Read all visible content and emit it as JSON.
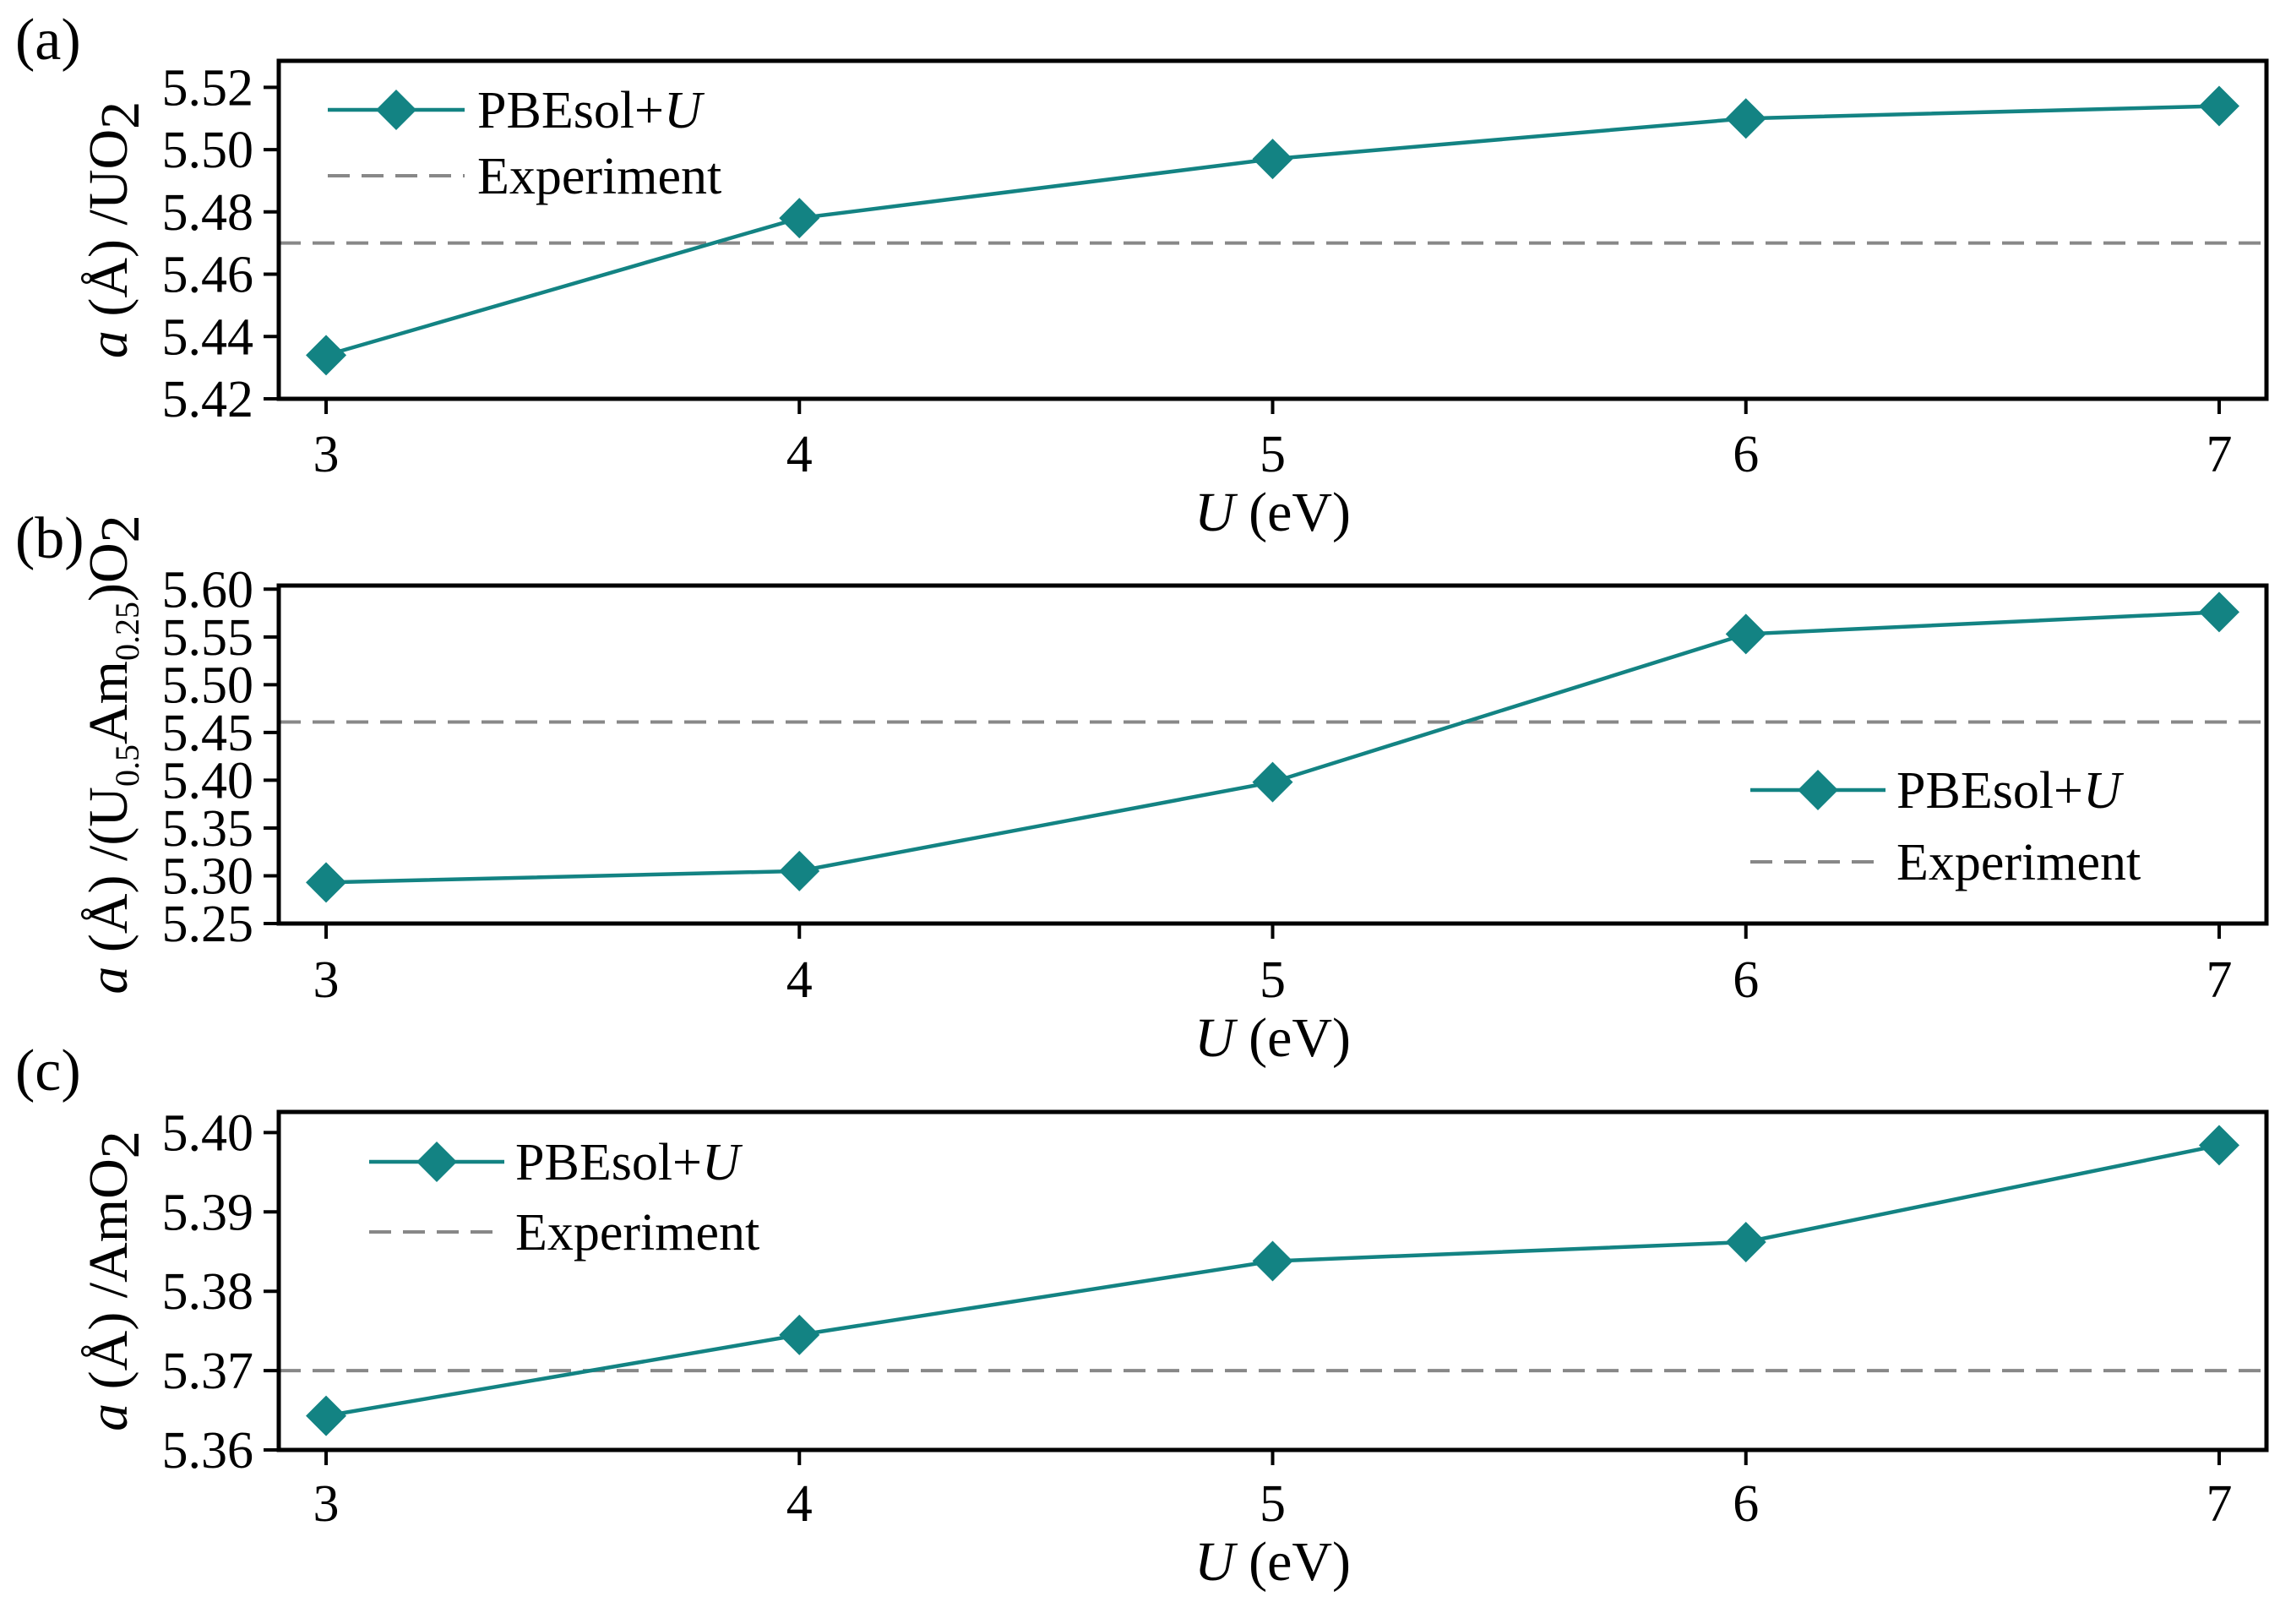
{
  "colors": {
    "series": "#138383",
    "experiment": "#888888",
    "axis": "#000000"
  },
  "chart_data": [
    {
      "type": "line",
      "panel": "(a)",
      "xlabel_italic": "U",
      "xlabel_rest": " (eV)",
      "ylabel_italic": "a",
      "ylabel_rest": " (Å) /UO",
      "ylabel_sub": "2",
      "x": [
        3,
        4,
        5,
        6,
        7
      ],
      "xlim": [
        2.9,
        7.1
      ],
      "xticks": [
        "3",
        "4",
        "5",
        "6",
        "7"
      ],
      "ylim": [
        5.42,
        5.5285
      ],
      "yticks": [
        5.42,
        5.44,
        5.46,
        5.48,
        5.5,
        5.52
      ],
      "ytick_labels": [
        "5.42",
        "5.44",
        "5.46",
        "5.48",
        "5.50",
        "5.52"
      ],
      "series": [
        {
          "name": "PBEsol+U",
          "name_plain": "PBEsol+",
          "name_italic": "U",
          "values": [
            5.434,
            5.478,
            5.497,
            5.51,
            5.514
          ]
        }
      ],
      "experiment": {
        "name": "Experiment",
        "value": 5.47
      },
      "legend_position": "top-left"
    },
    {
      "type": "line",
      "panel": "(b)",
      "xlabel_italic": "U",
      "xlabel_rest": " (eV)",
      "ylabel_italic": "a",
      "ylabel_rest": " (Å) /(U",
      "ylabel_sub1": "0.5",
      "ylabel_mid": "Am",
      "ylabel_sub2": "0.25",
      "ylabel_tail": ")O",
      "ylabel_sub3": "2",
      "x": [
        3,
        4,
        5,
        6,
        7
      ],
      "xlim": [
        2.9,
        7.1
      ],
      "xticks": [
        "3",
        "4",
        "5",
        "6",
        "7"
      ],
      "ylim": [
        5.25,
        5.6038
      ],
      "yticks": [
        5.25,
        5.3,
        5.35,
        5.4,
        5.45,
        5.5,
        5.55,
        5.6
      ],
      "ytick_labels": [
        "5.25",
        "5.30",
        "5.35",
        "5.40",
        "5.45",
        "5.50",
        "5.55",
        "5.60"
      ],
      "series": [
        {
          "name": "PBEsol+U",
          "name_plain": "PBEsol+",
          "name_italic": "U",
          "values": [
            5.293,
            5.305,
            5.398,
            5.553,
            5.576
          ]
        }
      ],
      "experiment": {
        "name": "Experiment",
        "value": 5.461
      },
      "legend_position": "bottom-right"
    },
    {
      "type": "line",
      "panel": "(c)",
      "xlabel_italic": "U",
      "xlabel_rest": " (eV)",
      "ylabel_italic": "a",
      "ylabel_rest": " (Å) /AmO",
      "ylabel_sub": "2",
      "x": [
        3,
        4,
        5,
        6,
        7
      ],
      "xlim": [
        2.9,
        7.1
      ],
      "xticks": [
        "3",
        "4",
        "5",
        "6",
        "7"
      ],
      "ylim": [
        5.36,
        5.4026
      ],
      "yticks": [
        5.36,
        5.37,
        5.38,
        5.39,
        5.4
      ],
      "ytick_labels": [
        "5.36",
        "5.37",
        "5.38",
        "5.39",
        "5.40"
      ],
      "series": [
        {
          "name": "PBEsol+U",
          "name_plain": "PBEsol+",
          "name_italic": "U",
          "values": [
            5.3643,
            5.3745,
            5.3838,
            5.3862,
            5.3984
          ]
        }
      ],
      "experiment": {
        "name": "Experiment",
        "value": 5.37
      },
      "legend_position": "top-left"
    }
  ]
}
